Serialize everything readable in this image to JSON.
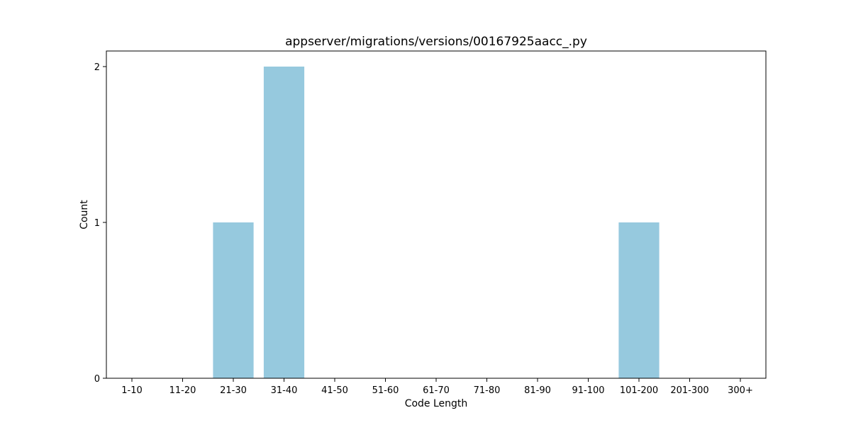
{
  "chart_data": {
    "type": "bar",
    "title": "appserver/migrations/versions/00167925aacc_.py",
    "xlabel": "Code Length",
    "ylabel": "Count",
    "categories": [
      "1-10",
      "11-20",
      "21-30",
      "31-40",
      "41-50",
      "51-60",
      "61-70",
      "71-80",
      "81-90",
      "91-100",
      "101-200",
      "201-300",
      "300+"
    ],
    "values": [
      0,
      0,
      1,
      2,
      0,
      0,
      0,
      0,
      0,
      0,
      1,
      0,
      0
    ],
    "ylim": [
      0,
      2.1
    ],
    "yticks": [
      0,
      1,
      2
    ],
    "grid": false,
    "bar_color": "#96c9de"
  }
}
